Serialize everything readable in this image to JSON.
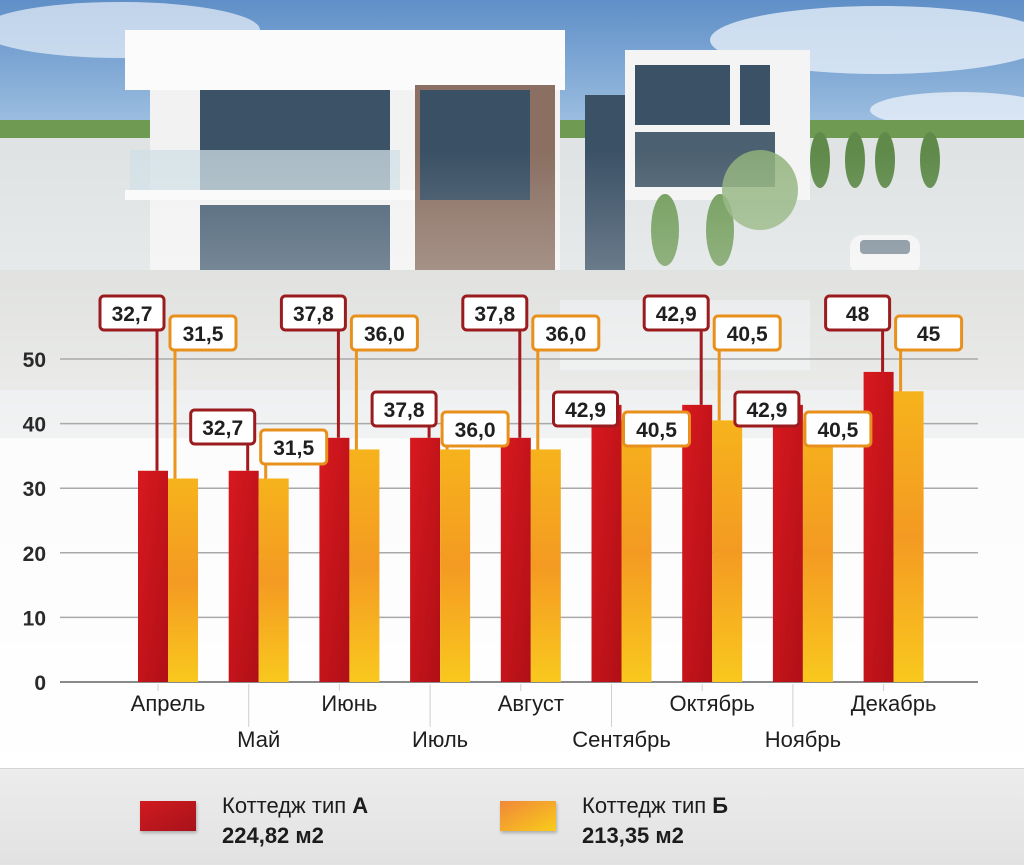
{
  "chart_data": {
    "type": "bar",
    "categories": [
      "Апрель",
      "Май",
      "Июнь",
      "Июль",
      "Август",
      "Сентябрь",
      "Октябрь",
      "Ноябрь",
      "Декабрь"
    ],
    "series": [
      {
        "name": "Коттедж тип А",
        "area": "224,82 м2",
        "values": [
          32.7,
          32.7,
          37.8,
          37.8,
          37.8,
          42.9,
          42.9,
          42.9,
          48
        ],
        "labels": [
          "32,7",
          "32,7",
          "37,8",
          "37,8",
          "37,8",
          "42,9",
          "42,9",
          "42,9",
          "48"
        ],
        "color": "#c8161d"
      },
      {
        "name": "Коттедж тип Б",
        "area": "213,35 м2",
        "values": [
          31.5,
          31.5,
          36.0,
          36.0,
          36.0,
          40.5,
          40.5,
          40.5,
          45
        ],
        "labels": [
          "31,5",
          "31,5",
          "36,0",
          "36,0",
          "36,0",
          "40,5",
          "40,5",
          "40,5",
          "45"
        ],
        "color": "#f4a21c"
      }
    ],
    "y_ticks": [
      "0",
      "10",
      "20",
      "30",
      "40",
      "50"
    ],
    "ylim": [
      0,
      55
    ],
    "grid": true,
    "legend_position": "bottom"
  },
  "legend": {
    "a_prefix": "Коттедж тип ",
    "a_letter": "А",
    "a_area": "224,82 м2",
    "b_prefix": "Коттедж тип ",
    "b_letter": "Б",
    "b_area": "213,35 м2"
  },
  "colors": {
    "series_a_dark": "#b3151a",
    "series_a_light": "#e53a25",
    "series_b_dark": "#f0902a",
    "series_b_light": "#f9c520",
    "label_border_a": "#9b1c1f",
    "label_border_b": "#e8901c"
  }
}
